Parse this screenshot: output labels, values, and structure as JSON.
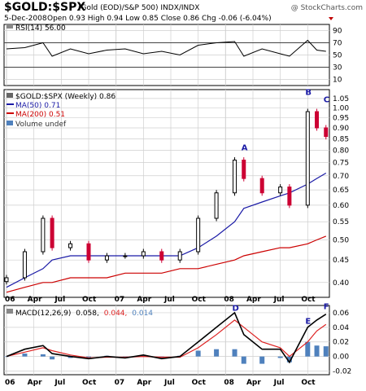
{
  "header": {
    "symbol": "$GOLD:$SPX",
    "description": "(Gold (EOD)/S&P 500) INDX/INDX",
    "watermark": "@ StockCharts.com",
    "date": "5-Dec-2008",
    "quote_line": "Open 0.93 High 0.94 Low 0.85 Close 0.86 Chg -0.06 (-6.04%)",
    "chg_arrow_color": "#c00000"
  },
  "legend": {
    "rsi": "RSI(14) 56.00",
    "price": "$GOLD:$SPX (Weekly) 0.86",
    "ma50": "MA(50) 0.71",
    "ma200": "MA(200) 0.51",
    "volume": "Volume undef",
    "macd_prefix": "MACD(12,26,9)",
    "macd_val": "0.058,",
    "signal_val": "0.044,",
    "hist_val": "0.014"
  },
  "colors": {
    "ma50": "#1a1aa6",
    "ma200": "#cc0000",
    "up_candle": "#000000",
    "down_candle": "#cc0033",
    "macd_line": "#000000",
    "signal_line": "#dd2222",
    "histogram": "#4f81bd",
    "grid": "#cfcfcf"
  },
  "chart_data": [
    {
      "type": "line",
      "name": "rsi",
      "ylabel": "",
      "yticks": [
        10,
        30,
        50,
        70,
        90
      ],
      "ylim": [
        0,
        100
      ],
      "reference_lines": [
        30,
        70
      ],
      "x": [
        "2006-01",
        "2006-03",
        "2006-05",
        "2006-06",
        "2006-08",
        "2006-10",
        "2006-12",
        "2007-02",
        "2007-04",
        "2007-06",
        "2007-08",
        "2007-10",
        "2007-12",
        "2008-02",
        "2008-03",
        "2008-05",
        "2008-07",
        "2008-08",
        "2008-10",
        "2008-11",
        "2008-12"
      ],
      "values": [
        60,
        62,
        70,
        48,
        60,
        52,
        58,
        60,
        52,
        56,
        50,
        66,
        70,
        72,
        48,
        60,
        52,
        48,
        74,
        58,
        56
      ]
    },
    {
      "type": "candlestick",
      "name": "price",
      "ylabel": "",
      "scale": "log",
      "yticks": [
        0.4,
        0.45,
        0.5,
        0.55,
        0.6,
        0.65,
        0.7,
        0.75,
        0.8,
        0.85,
        0.9,
        0.95,
        1.0,
        1.05
      ],
      "ylim": [
        0.37,
        1.1
      ],
      "x": [
        "2006-01",
        "2006-03",
        "2006-05",
        "2006-06",
        "2006-08",
        "2006-10",
        "2006-12",
        "2007-02",
        "2007-04",
        "2007-06",
        "2007-08",
        "2007-10",
        "2007-12",
        "2008-02",
        "2008-03",
        "2008-05",
        "2008-07",
        "2008-08",
        "2008-10",
        "2008-11",
        "2008-12"
      ],
      "close": [
        0.41,
        0.47,
        0.56,
        0.48,
        0.49,
        0.45,
        0.46,
        0.46,
        0.47,
        0.45,
        0.47,
        0.56,
        0.64,
        0.76,
        0.69,
        0.64,
        0.66,
        0.6,
        0.98,
        0.9,
        0.86
      ],
      "ma50": [
        0.39,
        0.41,
        0.43,
        0.45,
        0.46,
        0.46,
        0.46,
        0.46,
        0.46,
        0.46,
        0.46,
        0.48,
        0.51,
        0.55,
        0.59,
        0.61,
        0.63,
        0.64,
        0.67,
        0.69,
        0.71
      ],
      "ma200": [
        0.38,
        0.39,
        0.4,
        0.4,
        0.41,
        0.41,
        0.41,
        0.42,
        0.42,
        0.42,
        0.43,
        0.43,
        0.44,
        0.45,
        0.46,
        0.47,
        0.48,
        0.48,
        0.49,
        0.5,
        0.51
      ],
      "annotations": [
        {
          "label": "A",
          "x": "2008-03",
          "y": 0.8
        },
        {
          "label": "B",
          "x": "2008-10",
          "y": 1.07
        },
        {
          "label": "C",
          "x": "2008-12",
          "y": 1.03
        }
      ]
    },
    {
      "type": "line",
      "name": "macd",
      "ylabel": "",
      "yticks": [
        -0.02,
        0.0,
        0.02,
        0.04,
        0.06
      ],
      "ylim": [
        -0.025,
        0.07
      ],
      "x": [
        "2006-01",
        "2006-03",
        "2006-05",
        "2006-06",
        "2006-08",
        "2006-10",
        "2006-12",
        "2007-02",
        "2007-04",
        "2007-06",
        "2007-08",
        "2007-10",
        "2007-12",
        "2008-02",
        "2008-03",
        "2008-05",
        "2008-07",
        "2008-08",
        "2008-10",
        "2008-11",
        "2008-12"
      ],
      "series": [
        {
          "name": "MACD(12,26,9)",
          "values": [
            0.0,
            0.01,
            0.015,
            0.004,
            0.0,
            -0.003,
            0.0,
            -0.002,
            0.002,
            -0.003,
            0.0,
            0.02,
            0.04,
            0.06,
            0.03,
            0.01,
            0.01,
            -0.008,
            0.04,
            0.05,
            0.058
          ]
        },
        {
          "name": "signal",
          "values": [
            0.0,
            0.006,
            0.012,
            0.008,
            0.002,
            -0.002,
            -0.001,
            -0.001,
            0.0,
            -0.001,
            -0.001,
            0.012,
            0.03,
            0.05,
            0.04,
            0.02,
            0.012,
            0.0,
            0.02,
            0.035,
            0.044
          ]
        }
      ],
      "histogram": [
        0.0,
        0.004,
        0.003,
        -0.004,
        -0.002,
        -0.001,
        0.001,
        -0.001,
        0.002,
        -0.002,
        0.001,
        0.008,
        0.01,
        0.01,
        -0.01,
        -0.01,
        -0.002,
        -0.008,
        0.02,
        0.015,
        0.014
      ],
      "annotations": [
        {
          "label": "D",
          "x": "2008-02",
          "y": 0.063
        },
        {
          "label": "E",
          "x": "2008-10",
          "y": 0.045
        },
        {
          "label": "F",
          "x": "2008-12",
          "y": 0.065
        }
      ]
    }
  ],
  "x_axis": {
    "tick_labels": [
      "06",
      "Apr",
      "Jul",
      "Oct",
      "07",
      "Apr",
      "Jul",
      "Oct",
      "08",
      "Apr",
      "Jul",
      "Oct"
    ],
    "tick_dates": [
      "2006-01",
      "2006-04",
      "2006-07",
      "2006-10",
      "2007-01",
      "2007-04",
      "2007-07",
      "2007-10",
      "2008-01",
      "2008-04",
      "2008-07",
      "2008-10"
    ],
    "year_ticks": [
      "06",
      "07",
      "08"
    ]
  }
}
